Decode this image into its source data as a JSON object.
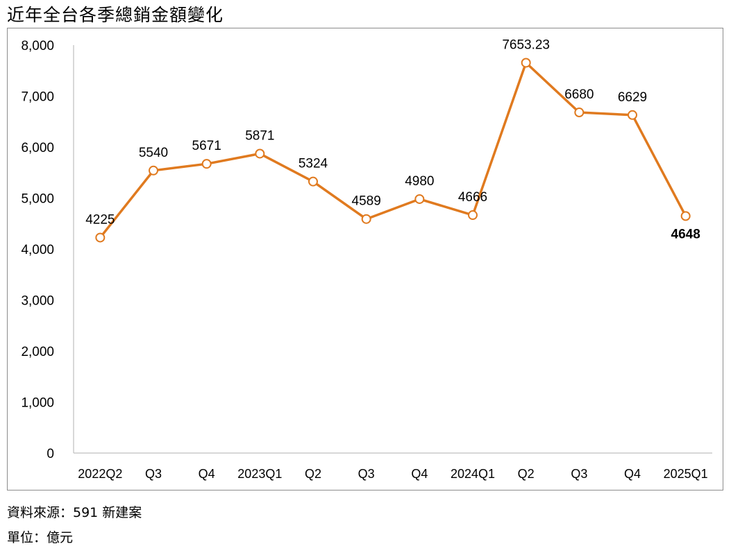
{
  "title": "近年全台各季總銷金額變化",
  "footer": {
    "source": "資料來源：591 新建案",
    "unit": "單位：億元"
  },
  "colors": {
    "line": "#E07A1F",
    "marker_fill": "#ffffff",
    "axis": "#bfbfbf",
    "highlight_label": "#E02020"
  },
  "chart_data": {
    "type": "line",
    "title": "近年全台各季總銷金額變化",
    "xlabel": "",
    "ylabel": "",
    "ylim": [
      0,
      8000
    ],
    "yticks": [
      0,
      1000,
      2000,
      3000,
      4000,
      5000,
      6000,
      7000,
      8000
    ],
    "ytick_labels": [
      "0",
      "1,000",
      "2,000",
      "3,000",
      "4,000",
      "5,000",
      "6,000",
      "7,000",
      "8,000"
    ],
    "grid": false,
    "legend": "none",
    "categories": [
      "2022Q2",
      "Q3",
      "Q4",
      "2023Q1",
      "Q2",
      "Q3",
      "Q4",
      "2024Q1",
      "Q2",
      "Q3",
      "Q4",
      "2025Q1"
    ],
    "series": [
      {
        "values": [
          4225,
          5540,
          5671,
          5871,
          5324,
          4589,
          4980,
          4666,
          7653.23,
          6680,
          6629,
          4648
        ],
        "labels": [
          "4225",
          "5540",
          "5671",
          "5871",
          "5324",
          "4589",
          "4980",
          "4666",
          "7653.23",
          "6680",
          "6629",
          "4648"
        ],
        "highlight_index": 11
      }
    ]
  }
}
